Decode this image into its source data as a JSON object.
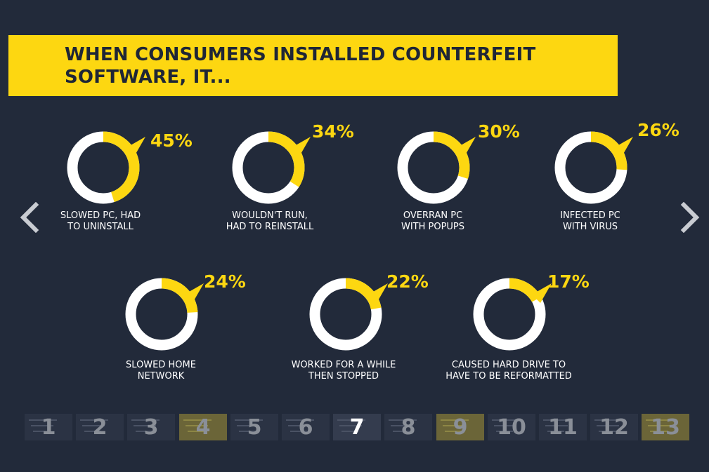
{
  "title_lines": [
    "WHEN CONSUMERS INSTALLED COUNTERFEIT",
    "SOFTWARE, IT..."
  ],
  "colors": {
    "background": "#222a3a",
    "accent": "#fdd711",
    "ring": "#ffffff"
  },
  "chart_data": {
    "type": "pie",
    "title": "WHEN CONSUMERS INSTALLED COUNTERFEIT SOFTWARE, IT...",
    "items": [
      {
        "value": 45,
        "label": "45%",
        "caption": [
          "SLOWED PC, HAD",
          "TO UNINSTALL"
        ]
      },
      {
        "value": 34,
        "label": "34%",
        "caption": [
          "WOULDN'T RUN,",
          "HAD TO REINSTALL"
        ]
      },
      {
        "value": 30,
        "label": "30%",
        "caption": [
          "OVERRAN PC",
          "WITH POPUPS"
        ]
      },
      {
        "value": 26,
        "label": "26%",
        "caption": [
          "INFECTED PC",
          "WITH VIRUS"
        ]
      },
      {
        "value": 24,
        "label": "24%",
        "caption": [
          "SLOWED HOME",
          "NETWORK"
        ]
      },
      {
        "value": 22,
        "label": "22%",
        "caption": [
          "WORKED FOR A WHILE",
          "THEN STOPPED"
        ]
      },
      {
        "value": 17,
        "label": "17%",
        "caption": [
          "CAUSED HARD DRIVE TO",
          "HAVE TO BE REFORMATTED"
        ]
      }
    ]
  },
  "navigation": {
    "prev_icon": "chevron-left-icon",
    "next_icon": "chevron-right-icon",
    "thumbnails": [
      {
        "label": "1",
        "style": "dark"
      },
      {
        "label": "2",
        "style": "dark"
      },
      {
        "label": "3",
        "style": "dark"
      },
      {
        "label": "4",
        "style": "yellow"
      },
      {
        "label": "5",
        "style": "dark"
      },
      {
        "label": "6",
        "style": "dark"
      },
      {
        "label": "7",
        "style": "active"
      },
      {
        "label": "8",
        "style": "dark"
      },
      {
        "label": "9",
        "style": "yellow"
      },
      {
        "label": "10",
        "style": "dark"
      },
      {
        "label": "11",
        "style": "dark"
      },
      {
        "label": "12",
        "style": "dark"
      },
      {
        "label": "13",
        "style": "yellow"
      }
    ],
    "active_index": 6
  }
}
